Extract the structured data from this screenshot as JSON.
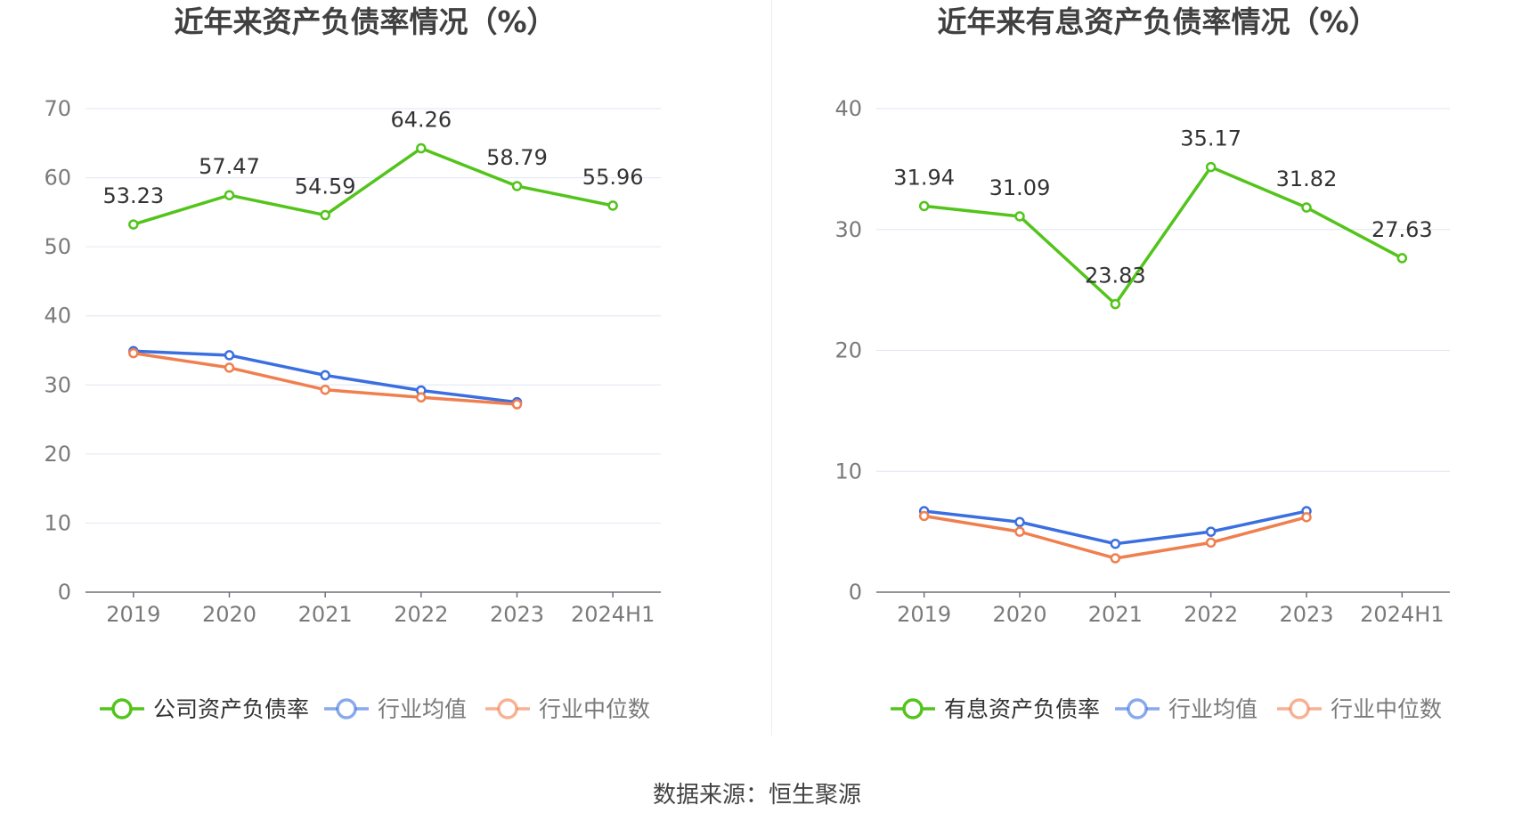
{
  "source": "数据来源：恒生聚源",
  "chart_data": [
    {
      "type": "line",
      "title": "近年来资产负债率情况（%）",
      "categories": [
        "2019",
        "2020",
        "2021",
        "2022",
        "2023",
        "2024H1"
      ],
      "yticks": [
        "0",
        "10",
        "20",
        "30",
        "40",
        "50",
        "60",
        "70"
      ],
      "ylim": [
        0,
        70
      ],
      "grid": true,
      "legend_position": "bottom",
      "series": [
        {
          "name": "公司资产负债率",
          "color": "#52c41a",
          "values": [
            53.23,
            57.47,
            54.59,
            64.26,
            58.79,
            55.96
          ],
          "labels": [
            "53.23",
            "57.47",
            "54.59",
            "64.26",
            "58.79",
            "55.96"
          ]
        },
        {
          "name": "行业均值",
          "color": "#3b6fe0",
          "values": [
            34.9,
            34.3,
            31.4,
            29.2,
            27.5,
            null
          ]
        },
        {
          "name": "行业中位数",
          "color": "#f07f4f",
          "values": [
            34.6,
            32.5,
            29.3,
            28.2,
            27.2,
            null
          ]
        }
      ]
    },
    {
      "type": "line",
      "title": "近年来有息资产负债率情况（%）",
      "categories": [
        "2019",
        "2020",
        "2021",
        "2022",
        "2023",
        "2024H1"
      ],
      "yticks": [
        "0",
        "10",
        "20",
        "30",
        "40"
      ],
      "ylim": [
        0,
        40
      ],
      "grid": true,
      "legend_position": "bottom",
      "series": [
        {
          "name": "有息资产负债率",
          "color": "#52c41a",
          "values": [
            31.94,
            31.09,
            23.83,
            35.17,
            31.82,
            27.63
          ],
          "labels": [
            "31.94",
            "31.09",
            "23.83",
            "35.17",
            "31.82",
            "27.63"
          ]
        },
        {
          "name": "行业均值",
          "color": "#3b6fe0",
          "values": [
            6.7,
            5.8,
            4.0,
            5.0,
            6.7,
            null
          ]
        },
        {
          "name": "行业中位数",
          "color": "#f07f4f",
          "values": [
            6.3,
            5.0,
            2.8,
            4.1,
            6.2,
            null
          ]
        }
      ]
    }
  ]
}
